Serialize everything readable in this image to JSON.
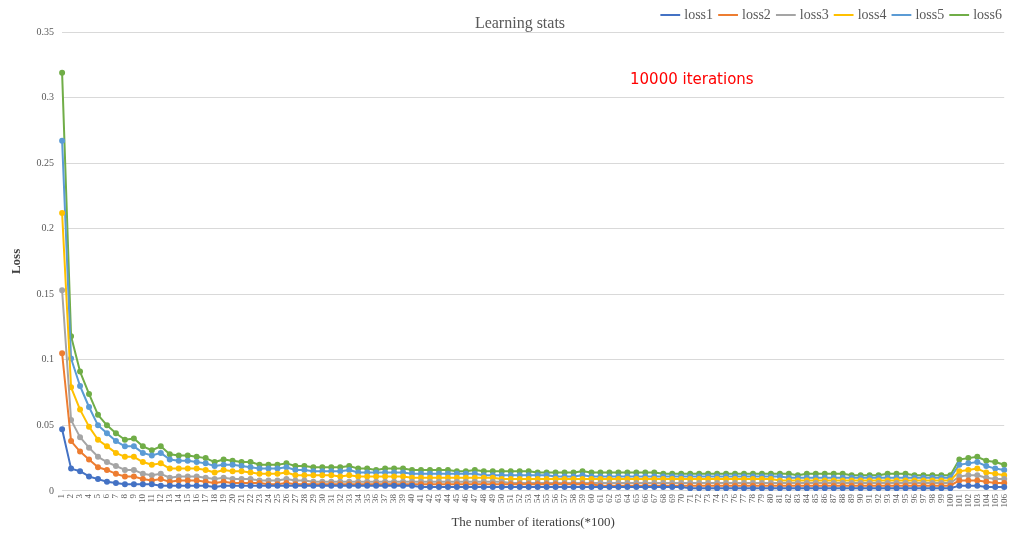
{
  "chart_data": {
    "type": "line",
    "title": "Learning stats",
    "xlabel": "The number of iterations(*100)",
    "ylabel": "Loss",
    "annotations": [
      "10000 iterations"
    ],
    "categories": [
      "1",
      "2",
      "3",
      "4",
      "5",
      "6",
      "7",
      "8",
      "9",
      "10",
      "11",
      "12",
      "13",
      "14",
      "15",
      "16",
      "17",
      "18",
      "19",
      "20",
      "21",
      "22",
      "23",
      "24",
      "25",
      "26",
      "27",
      "28",
      "29",
      "30",
      "31",
      "32",
      "33",
      "34",
      "35",
      "36",
      "37",
      "38",
      "39",
      "40",
      "41",
      "42",
      "43",
      "44",
      "45",
      "46",
      "47",
      "48",
      "49",
      "50",
      "51",
      "52",
      "53",
      "54",
      "55",
      "56",
      "57",
      "58",
      "59",
      "60",
      "61",
      "62",
      "63",
      "64",
      "65",
      "66",
      "67",
      "68",
      "69",
      "70",
      "71",
      "72",
      "73",
      "74",
      "75",
      "76",
      "77",
      "78",
      "79",
      "80",
      "81",
      "82",
      "83",
      "84",
      "85",
      "86",
      "87",
      "88",
      "89",
      "90",
      "91",
      "92",
      "93",
      "94",
      "95",
      "96",
      "97",
      "98",
      "99",
      "100",
      "101",
      "102",
      "103",
      "104",
      "105",
      "106"
    ],
    "ylim": [
      0,
      0.35
    ],
    "yticks": [
      0,
      0.05,
      0.1,
      0.15,
      0.2,
      0.25,
      0.3,
      0.35
    ],
    "grid": "y",
    "legend": "top right",
    "marker": "circle",
    "line_style": "solid",
    "series": [
      {
        "name": "loss1",
        "color": "#4472c4",
        "values": [
          0.047,
          0.017,
          0.015,
          0.011,
          0.009,
          0.007,
          0.006,
          0.005,
          0.005,
          0.005,
          0.005,
          0.004,
          0.004,
          0.004,
          0.004,
          0.004,
          0.004,
          0.003,
          0.004,
          0.004,
          0.004,
          0.004,
          0.004,
          0.004,
          0.004,
          0.004,
          0.004,
          0.004,
          0.004,
          0.004,
          0.004,
          0.004,
          0.004,
          0.004,
          0.004,
          0.004,
          0.004,
          0.004,
          0.004,
          0.004,
          0.003,
          0.003,
          0.003,
          0.003,
          0.003,
          0.003,
          0.003,
          0.003,
          0.003,
          0.003,
          0.003,
          0.003,
          0.003,
          0.003,
          0.003,
          0.003,
          0.003,
          0.003,
          0.003,
          0.003,
          0.003,
          0.003,
          0.003,
          0.003,
          0.003,
          0.003,
          0.003,
          0.003,
          0.003,
          0.003,
          0.002,
          0.002,
          0.002,
          0.002,
          0.002,
          0.002,
          0.002,
          0.002,
          0.002,
          0.002,
          0.002,
          0.002,
          0.002,
          0.002,
          0.002,
          0.002,
          0.002,
          0.002,
          0.002,
          0.002,
          0.002,
          0.002,
          0.002,
          0.002,
          0.002,
          0.002,
          0.002,
          0.002,
          0.002,
          0.002,
          0.004,
          0.004,
          0.004,
          0.003,
          0.003,
          0.003
        ]
      },
      {
        "name": "loss2",
        "color": "#ed7d31",
        "values": [
          0.105,
          0.038,
          0.03,
          0.024,
          0.018,
          0.016,
          0.013,
          0.011,
          0.011,
          0.009,
          0.008,
          0.009,
          0.007,
          0.008,
          0.008,
          0.008,
          0.007,
          0.006,
          0.007,
          0.006,
          0.006,
          0.006,
          0.006,
          0.005,
          0.005,
          0.006,
          0.005,
          0.005,
          0.005,
          0.005,
          0.005,
          0.005,
          0.005,
          0.005,
          0.005,
          0.005,
          0.005,
          0.005,
          0.005,
          0.005,
          0.005,
          0.005,
          0.005,
          0.005,
          0.005,
          0.005,
          0.005,
          0.005,
          0.005,
          0.005,
          0.005,
          0.005,
          0.005,
          0.005,
          0.005,
          0.005,
          0.005,
          0.005,
          0.005,
          0.005,
          0.004,
          0.004,
          0.004,
          0.004,
          0.004,
          0.004,
          0.004,
          0.004,
          0.004,
          0.004,
          0.004,
          0.004,
          0.004,
          0.004,
          0.004,
          0.004,
          0.004,
          0.004,
          0.004,
          0.004,
          0.004,
          0.004,
          0.004,
          0.004,
          0.004,
          0.004,
          0.004,
          0.004,
          0.004,
          0.004,
          0.004,
          0.004,
          0.004,
          0.004,
          0.004,
          0.004,
          0.004,
          0.004,
          0.004,
          0.004,
          0.008,
          0.008,
          0.008,
          0.007,
          0.006,
          0.006
        ]
      },
      {
        "name": "loss3",
        "color": "#a5a5a5",
        "values": [
          0.153,
          0.054,
          0.041,
          0.033,
          0.026,
          0.022,
          0.019,
          0.016,
          0.016,
          0.013,
          0.012,
          0.013,
          0.01,
          0.011,
          0.011,
          0.011,
          0.01,
          0.009,
          0.01,
          0.009,
          0.009,
          0.009,
          0.008,
          0.008,
          0.008,
          0.009,
          0.008,
          0.008,
          0.007,
          0.007,
          0.007,
          0.007,
          0.007,
          0.007,
          0.007,
          0.007,
          0.007,
          0.007,
          0.007,
          0.007,
          0.007,
          0.007,
          0.007,
          0.007,
          0.007,
          0.007,
          0.007,
          0.007,
          0.007,
          0.007,
          0.006,
          0.006,
          0.006,
          0.006,
          0.006,
          0.006,
          0.006,
          0.006,
          0.006,
          0.006,
          0.006,
          0.006,
          0.006,
          0.006,
          0.006,
          0.006,
          0.006,
          0.006,
          0.006,
          0.006,
          0.006,
          0.006,
          0.006,
          0.006,
          0.006,
          0.006,
          0.006,
          0.006,
          0.006,
          0.006,
          0.006,
          0.006,
          0.006,
          0.006,
          0.006,
          0.006,
          0.006,
          0.006,
          0.006,
          0.006,
          0.006,
          0.006,
          0.006,
          0.006,
          0.006,
          0.006,
          0.006,
          0.006,
          0.006,
          0.006,
          0.011,
          0.012,
          0.012,
          0.01,
          0.009,
          0.009
        ]
      },
      {
        "name": "loss4",
        "color": "#ffc000",
        "values": [
          0.212,
          0.079,
          0.062,
          0.049,
          0.039,
          0.034,
          0.029,
          0.026,
          0.026,
          0.022,
          0.02,
          0.021,
          0.017,
          0.017,
          0.017,
          0.017,
          0.016,
          0.014,
          0.016,
          0.015,
          0.015,
          0.014,
          0.013,
          0.013,
          0.013,
          0.014,
          0.012,
          0.012,
          0.012,
          0.012,
          0.012,
          0.011,
          0.012,
          0.011,
          0.011,
          0.011,
          0.011,
          0.011,
          0.011,
          0.01,
          0.01,
          0.01,
          0.01,
          0.01,
          0.01,
          0.01,
          0.01,
          0.01,
          0.01,
          0.009,
          0.009,
          0.009,
          0.009,
          0.009,
          0.009,
          0.009,
          0.009,
          0.009,
          0.009,
          0.009,
          0.009,
          0.009,
          0.009,
          0.009,
          0.009,
          0.009,
          0.009,
          0.009,
          0.009,
          0.009,
          0.009,
          0.009,
          0.009,
          0.009,
          0.009,
          0.009,
          0.009,
          0.009,
          0.009,
          0.009,
          0.008,
          0.008,
          0.008,
          0.008,
          0.008,
          0.008,
          0.008,
          0.008,
          0.008,
          0.008,
          0.008,
          0.008,
          0.008,
          0.008,
          0.008,
          0.008,
          0.008,
          0.008,
          0.008,
          0.008,
          0.015,
          0.016,
          0.017,
          0.014,
          0.013,
          0.012
        ]
      },
      {
        "name": "loss5",
        "color": "#5b9bd5",
        "values": [
          0.267,
          0.101,
          0.08,
          0.064,
          0.05,
          0.044,
          0.038,
          0.034,
          0.034,
          0.029,
          0.027,
          0.029,
          0.024,
          0.023,
          0.023,
          0.022,
          0.021,
          0.019,
          0.02,
          0.02,
          0.019,
          0.018,
          0.017,
          0.017,
          0.017,
          0.018,
          0.016,
          0.016,
          0.015,
          0.015,
          0.015,
          0.015,
          0.016,
          0.014,
          0.014,
          0.014,
          0.014,
          0.014,
          0.014,
          0.013,
          0.013,
          0.013,
          0.013,
          0.013,
          0.013,
          0.013,
          0.013,
          0.012,
          0.012,
          0.012,
          0.012,
          0.012,
          0.012,
          0.012,
          0.012,
          0.011,
          0.011,
          0.011,
          0.012,
          0.011,
          0.011,
          0.011,
          0.011,
          0.011,
          0.011,
          0.011,
          0.011,
          0.011,
          0.011,
          0.011,
          0.011,
          0.011,
          0.011,
          0.011,
          0.011,
          0.011,
          0.011,
          0.011,
          0.011,
          0.011,
          0.011,
          0.01,
          0.01,
          0.01,
          0.01,
          0.01,
          0.01,
          0.01,
          0.01,
          0.01,
          0.01,
          0.01,
          0.01,
          0.01,
          0.01,
          0.01,
          0.01,
          0.01,
          0.01,
          0.01,
          0.02,
          0.021,
          0.022,
          0.019,
          0.017,
          0.016
        ]
      },
      {
        "name": "loss6",
        "color": "#70ad47",
        "values": [
          0.319,
          0.118,
          0.091,
          0.074,
          0.058,
          0.05,
          0.044,
          0.039,
          0.04,
          0.034,
          0.031,
          0.034,
          0.028,
          0.027,
          0.027,
          0.026,
          0.025,
          0.022,
          0.024,
          0.023,
          0.022,
          0.022,
          0.02,
          0.02,
          0.02,
          0.021,
          0.019,
          0.019,
          0.018,
          0.018,
          0.018,
          0.018,
          0.019,
          0.017,
          0.017,
          0.016,
          0.017,
          0.017,
          0.017,
          0.016,
          0.016,
          0.016,
          0.016,
          0.016,
          0.015,
          0.015,
          0.016,
          0.015,
          0.015,
          0.015,
          0.015,
          0.015,
          0.015,
          0.014,
          0.014,
          0.014,
          0.014,
          0.014,
          0.015,
          0.014,
          0.014,
          0.014,
          0.014,
          0.014,
          0.014,
          0.014,
          0.014,
          0.013,
          0.013,
          0.013,
          0.013,
          0.013,
          0.013,
          0.013,
          0.013,
          0.013,
          0.013,
          0.013,
          0.013,
          0.013,
          0.013,
          0.013,
          0.012,
          0.013,
          0.013,
          0.013,
          0.013,
          0.013,
          0.012,
          0.012,
          0.012,
          0.012,
          0.013,
          0.013,
          0.013,
          0.012,
          0.012,
          0.012,
          0.012,
          0.012,
          0.024,
          0.025,
          0.026,
          0.023,
          0.022,
          0.02
        ]
      }
    ]
  }
}
